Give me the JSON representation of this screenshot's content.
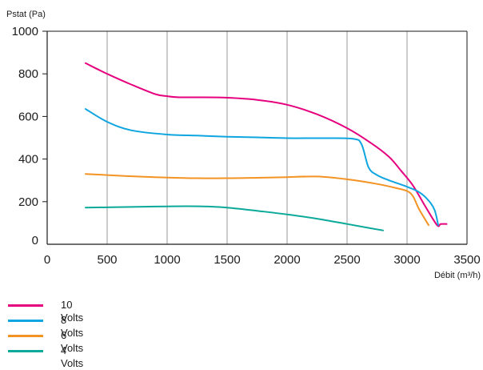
{
  "chart_data": {
    "type": "line",
    "title": "",
    "ylabel": "Pstat (Pa)",
    "xlabel": "Débit (m³/h)",
    "xlim": [
      0,
      3500
    ],
    "ylim": [
      0,
      1000
    ],
    "x_ticks": [
      "0",
      "500",
      "1000",
      "1500",
      "2000",
      "2500",
      "3000",
      "3500"
    ],
    "y_ticks": [
      "0",
      "200",
      "400",
      "600",
      "800",
      "1000"
    ],
    "grid": "vertical",
    "legend": "bottom-left",
    "series": [
      {
        "name": "10 Volts",
        "color": "#e6007e",
        "x": [
          320,
          500,
          700,
          900,
          1000,
          1100,
          1300,
          1500,
          1750,
          2000,
          2250,
          2500,
          2700,
          2850,
          2950,
          3050,
          3150,
          3250,
          3280,
          3330
        ],
        "y": [
          850,
          800,
          750,
          705,
          695,
          690,
          690,
          688,
          678,
          655,
          610,
          545,
          475,
          410,
          345,
          275,
          180,
          90,
          95,
          95
        ]
      },
      {
        "name": "8 Volts",
        "color": "#0ea5e0",
        "x": [
          320,
          500,
          700,
          1000,
          1250,
          1500,
          1750,
          2000,
          2300,
          2550,
          2620,
          2680,
          2750,
          2850,
          3000,
          3100,
          3180,
          3230,
          3260
        ],
        "y": [
          635,
          575,
          535,
          515,
          510,
          505,
          502,
          498,
          498,
          495,
          470,
          360,
          325,
          300,
          270,
          245,
          205,
          160,
          90
        ]
      },
      {
        "name": "6 Volts",
        "color": "#f39323",
        "x": [
          320,
          500,
          750,
          1000,
          1250,
          1500,
          1750,
          2000,
          2250,
          2500,
          2750,
          2900,
          3000,
          3050,
          3100,
          3180
        ],
        "y": [
          330,
          325,
          318,
          313,
          310,
          310,
          312,
          315,
          318,
          305,
          283,
          265,
          250,
          225,
          165,
          90
        ]
      },
      {
        "name": "4 Volts",
        "color": "#0aa99a",
        "x": [
          320,
          700,
          1000,
          1300,
          1500,
          1750,
          2000,
          2250,
          2500,
          2700,
          2800
        ],
        "y": [
          172,
          175,
          178,
          178,
          172,
          157,
          140,
          120,
          95,
          75,
          65
        ]
      }
    ]
  }
}
